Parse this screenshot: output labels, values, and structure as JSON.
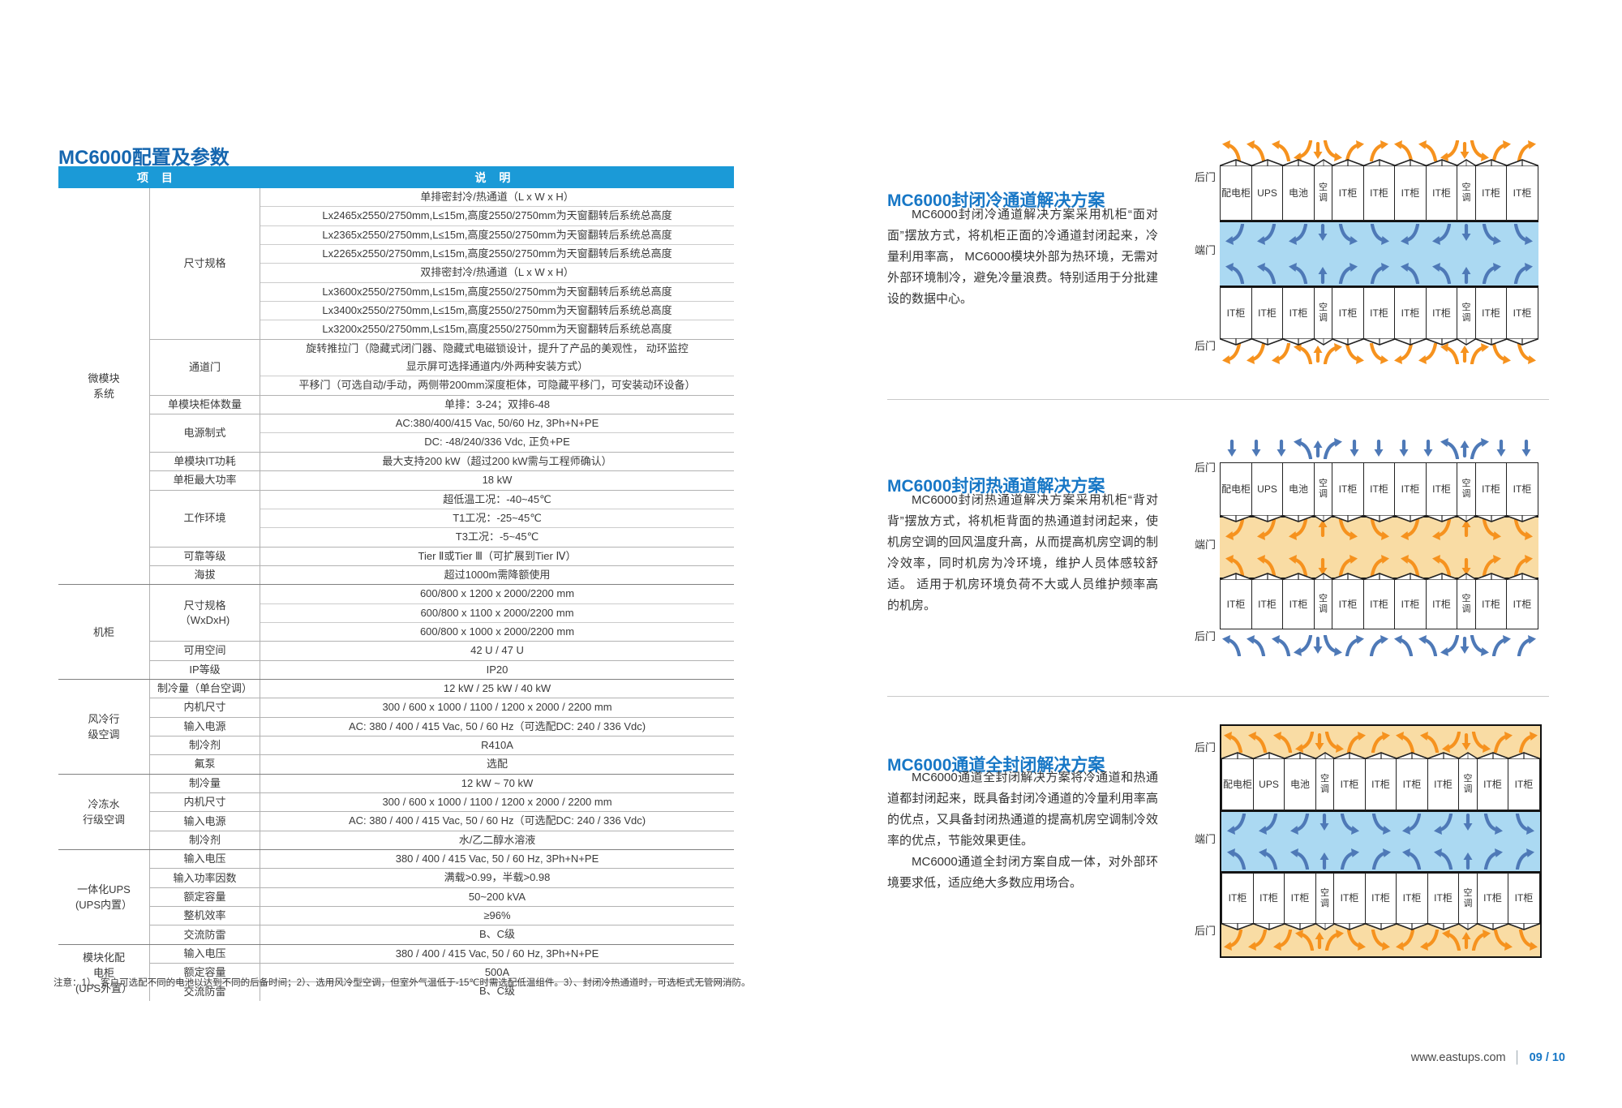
{
  "colors": {
    "accent_blue": "#1566AF",
    "section_blue": "#1777C6",
    "header_blue": "#1B9AD7",
    "cold_fill": "#ABD9F2",
    "hot_fill": "#F9DCA4",
    "cold_arrow": "#4E79B7",
    "hot_arrow": "#F6921E"
  },
  "left": {
    "title": "MC6000配置及参数",
    "table": {
      "header": {
        "item": "项  目",
        "desc": "说  明"
      },
      "groups": [
        {
          "name": "微模块\n系统",
          "rows": [
            {
              "label": "尺寸规格",
              "values": [
                "单排密封冷/热通道（L x W x H）",
                "Lx2465x2550/2750mm,L≤15m,高度2550/2750mm为天窗翻转后系统总高度",
                "Lx2365x2550/2750mm,L≤15m,高度2550/2750mm为天窗翻转后系统总高度",
                "Lx2265x2550/2750mm,L≤15m,高度2550/2750mm为天窗翻转后系统总高度",
                "双排密封冷/热通道（L x W x H）",
                "Lx3600x2550/2750mm,L≤15m,高度2550/2750mm为天窗翻转后系统总高度",
                "Lx3400x2550/2750mm,L≤15m,高度2550/2750mm为天窗翻转后系统总高度",
                "Lx3200x2550/2750mm,L≤15m,高度2550/2750mm为天窗翻转后系统总高度"
              ]
            },
            {
              "label": "通道门",
              "values": [
                "旋转推拉门（隐藏式闭门器、隐藏式电磁锁设计，提升了产品的美观性， 动环监控\n显示屏可选择通道内/外两种安装方式）",
                "平移门（可选自动/手动，两侧带200mm深度柜体，可隐藏平移门，可安装动环设备）"
              ]
            },
            {
              "label": "单模块柜体数量",
              "values": [
                "单排：3-24；双排6-48"
              ]
            },
            {
              "label": "电源制式",
              "values": [
                "AC:380/400/415 Vac, 50/60 Hz, 3Ph+N+PE",
                "DC: -48/240/336 Vdc, 正负+PE"
              ]
            },
            {
              "label": "单模块IT功耗",
              "values": [
                "最大支持200 kW（超过200 kW需与工程师确认）"
              ]
            },
            {
              "label": "单柜最大功率",
              "values": [
                "18 kW"
              ]
            },
            {
              "label": "工作环境",
              "values": [
                "超低温工况：-40~45℃",
                "T1工况：-25~45℃",
                "T3工况：-5~45℃"
              ]
            },
            {
              "label": "可靠等级",
              "values": [
                "Tier Ⅱ或Tier Ⅲ（可扩展到Tier Ⅳ）"
              ]
            },
            {
              "label": "海拔",
              "values": [
                "超过1000m需降额使用"
              ]
            }
          ]
        },
        {
          "name": "机柜",
          "rows": [
            {
              "label": "尺寸规格\n（WxDxH)",
              "values": [
                "600/800 x 1200 x 2000/2200 mm",
                "600/800 x 1100 x 2000/2200 mm",
                "600/800 x 1000 x 2000/2200 mm"
              ]
            },
            {
              "label": "可用空间",
              "values": [
                "42 U / 47 U"
              ]
            },
            {
              "label": "IP等级",
              "values": [
                "IP20"
              ]
            }
          ]
        },
        {
          "name": "风冷行\n级空调",
          "rows": [
            {
              "label": "制冷量（单台空调）",
              "values": [
                "12 kW / 25 kW / 40 kW"
              ]
            },
            {
              "label": "内机尺寸",
              "values": [
                "300 / 600 x 1000 / 1100 / 1200 x 2000 / 2200 mm"
              ]
            },
            {
              "label": "输入电源",
              "values": [
                "AC: 380 / 400 / 415 Vac, 50 / 60 Hz（可选配DC: 240 / 336 Vdc)"
              ]
            },
            {
              "label": "制冷剂",
              "values": [
                "R410A"
              ]
            },
            {
              "label": "氟泵",
              "values": [
                "选配"
              ]
            }
          ]
        },
        {
          "name": "冷冻水\n行级空调",
          "rows": [
            {
              "label": "制冷量",
              "values": [
                "12 kW ~ 70 kW"
              ]
            },
            {
              "label": "内机尺寸",
              "values": [
                "300 / 600 x 1000 / 1100 / 1200 x 2000 / 2200 mm"
              ]
            },
            {
              "label": "输入电源",
              "values": [
                "AC: 380 / 400 / 415 Vac, 50 / 60 Hz（可选配DC: 240 / 336 Vdc)"
              ]
            },
            {
              "label": "制冷剂",
              "values": [
                "水/乙二醇水溶液"
              ]
            }
          ]
        },
        {
          "name": "一体化UPS\n(UPS内置）",
          "rows": [
            {
              "label": "输入电压",
              "values": [
                "380 / 400 / 415 Vac, 50 / 60 Hz, 3Ph+N+PE"
              ]
            },
            {
              "label": "输入功率因数",
              "values": [
                "满载>0.99，半载>0.98"
              ]
            },
            {
              "label": "额定容量",
              "values": [
                "50~200 kVA"
              ]
            },
            {
              "label": "整机效率",
              "values": [
                "≥96%"
              ]
            },
            {
              "label": "交流防雷",
              "values": [
                "B、C级"
              ]
            }
          ]
        },
        {
          "name": "模块化配\n电柜\n(UPS外置）",
          "rows": [
            {
              "label": "输入电压",
              "values": [
                "380 / 400 / 415 Vac, 50 / 60 Hz, 3Ph+N+PE"
              ]
            },
            {
              "label": "额定容量",
              "values": [
                "500A"
              ]
            },
            {
              "label": "交流防雷",
              "values": [
                "B、C级"
              ]
            }
          ]
        }
      ]
    },
    "note": "注意：1）、客户可选配不同的电池以达到不同的后备时间；2）、选用风冷型空调，但室外气温低于-15℃时需选配低温组件。3）、封闭冷热通道时，可选柜式无管网消防。"
  },
  "right": {
    "sections": [
      {
        "title": "MC6000封闭冷通道解决方案",
        "paragraphs": [
          "MC6000封闭冷通道解决方案采用机柜“面对面”摆放方式，将机柜正面的冷通道封闭起来，冷量利用率高， MC6000模块外部为热环境，无需对外部环境制冷，避免冷量浪费。特别适用于分批建设的数据中心。"
        ],
        "diagram": {
          "type": "cold",
          "labels": {
            "top": "后门",
            "mid": "端门",
            "bottom": "后门"
          },
          "top_row": [
            "配电柜",
            "UPS",
            "电池",
            "空调",
            "IT柜",
            "IT柜",
            "IT柜",
            "IT柜",
            "空调",
            "IT柜",
            "IT柜"
          ],
          "bottom_row": [
            "IT柜",
            "IT柜",
            "IT柜",
            "空调",
            "IT柜",
            "IT柜",
            "IT柜",
            "IT柜",
            "空调",
            "IT柜",
            "IT柜"
          ]
        }
      },
      {
        "title": "MC6000封闭热通道解决方案",
        "paragraphs": [
          "MC6000封闭热通道解决方案采用机柜“背对背”摆放方式，将机柜背面的热通道封闭起来，使机房空调的回风温度升高，从而提高机房空调的制冷效率，同时机房为冷环境，维护人员体感较舒适。 适用于机房环境负荷不大或人员维护频率高的机房。"
        ],
        "diagram": {
          "type": "hot",
          "labels": {
            "top": "后门",
            "mid": "端门",
            "bottom": "后门"
          },
          "top_row": [
            "配电柜",
            "UPS",
            "电池",
            "空调",
            "IT柜",
            "IT柜",
            "IT柜",
            "IT柜",
            "空调",
            "IT柜",
            "IT柜"
          ],
          "bottom_row": [
            "IT柜",
            "IT柜",
            "IT柜",
            "空调",
            "IT柜",
            "IT柜",
            "IT柜",
            "IT柜",
            "空调",
            "IT柜",
            "IT柜"
          ]
        }
      },
      {
        "title": "MC6000通道全封闭解决方案",
        "paragraphs": [
          "MC6000通道全封闭解决方案将冷通道和热通道都封闭起来，既具备封闭冷通道的冷量利用率高的优点，又具备封闭热通道的提高机房空调制冷效率的优点，节能效果更佳。",
          "MC6000通道全封闭方案自成一体，对外部环境要求低，适应绝大多数应用场合。"
        ],
        "diagram": {
          "type": "full",
          "labels": {
            "top": "后门",
            "mid": "端门",
            "bottom": "后门"
          },
          "top_row": [
            "配电柜",
            "UPS",
            "电池",
            "空调",
            "IT柜",
            "IT柜",
            "IT柜",
            "IT柜",
            "空调",
            "IT柜",
            "IT柜"
          ],
          "bottom_row": [
            "IT柜",
            "IT柜",
            "IT柜",
            "空调",
            "IT柜",
            "IT柜",
            "IT柜",
            "IT柜",
            "空调",
            "IT柜",
            "IT柜"
          ]
        }
      }
    ],
    "footer": {
      "url": "www.eastups.com",
      "divider": "│",
      "page": "09 / 10"
    }
  }
}
